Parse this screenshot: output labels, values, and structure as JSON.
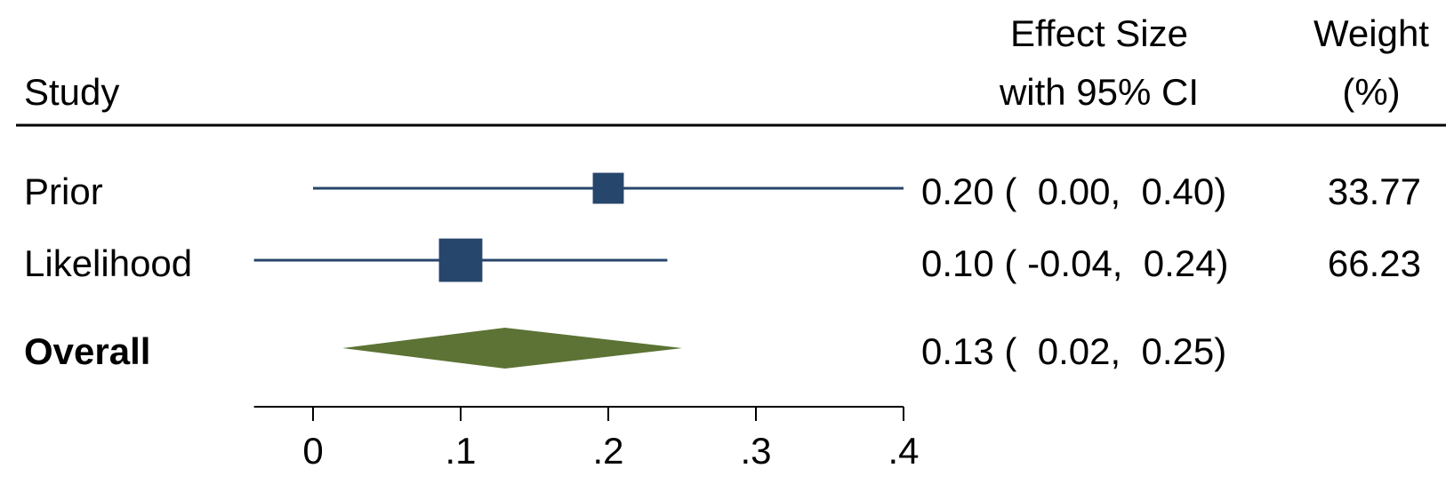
{
  "headers": {
    "study": "Study",
    "effect_line1": "Effect Size",
    "effect_line2": "with 95% CI",
    "weight_line1": "Weight",
    "weight_line2": "(%)"
  },
  "colors": {
    "marker": "#27466b",
    "ci_line": "#27466b",
    "diamond": "#5c7335",
    "text": "#000000"
  },
  "chart_data": {
    "type": "forest",
    "xlim": [
      -0.04,
      0.4
    ],
    "ticks": [
      0,
      0.1,
      0.2,
      0.3,
      0.4
    ],
    "tick_labels": [
      "0",
      ".1",
      ".2",
      ".3",
      ".4"
    ],
    "studies": [
      {
        "name": "Prior",
        "es": 0.2,
        "lo": 0.0,
        "hi": 0.4,
        "weight": 33.77,
        "ci_text": "0.20 (  0.00,  0.40)",
        "weight_text": "33.77"
      },
      {
        "name": "Likelihood",
        "es": 0.1,
        "lo": -0.04,
        "hi": 0.24,
        "weight": 66.23,
        "ci_text": "0.10 ( -0.04,  0.24)",
        "weight_text": "66.23"
      }
    ],
    "overall": {
      "name": "Overall",
      "es": 0.13,
      "lo": 0.02,
      "hi": 0.25,
      "ci_text": "0.13 (  0.02,  0.25)"
    }
  }
}
